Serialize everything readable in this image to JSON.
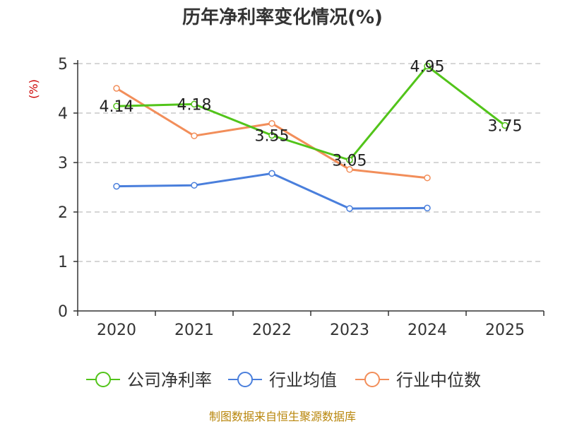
{
  "chart_data": {
    "type": "line",
    "title": "历年净利率变化情况(%)",
    "ylabel": "(%)",
    "xlabel": "",
    "ylim": [
      0,
      5
    ],
    "yticks": [
      "0",
      "1",
      "2",
      "3",
      "4",
      "5"
    ],
    "categories": [
      "2020",
      "2021",
      "2022",
      "2023",
      "2024",
      "2025"
    ],
    "grid": true,
    "legend_position": "bottom",
    "series": [
      {
        "name": "公司净利率",
        "color": "#52c41a",
        "values": [
          4.14,
          4.18,
          3.55,
          3.05,
          4.95,
          3.75
        ],
        "labels": [
          "4.14",
          "4.18",
          "3.55",
          "3.05",
          "4.95",
          "3.75"
        ]
      },
      {
        "name": "行业均值",
        "color": "#4a7fdc",
        "values": [
          2.52,
          2.54,
          2.78,
          2.07,
          2.08,
          null
        ]
      },
      {
        "name": "行业中位数",
        "color": "#f28e5a",
        "values": [
          4.5,
          3.54,
          3.79,
          2.86,
          2.69,
          null
        ]
      }
    ],
    "source": "制图数据来自恒生聚源数据库"
  }
}
